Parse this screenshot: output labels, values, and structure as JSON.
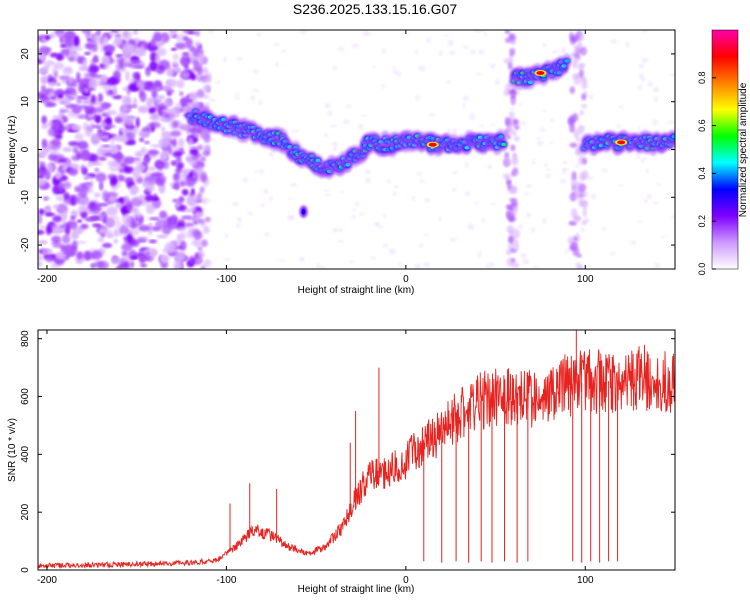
{
  "title": "S236.2025.133.15.16.G07",
  "chart_data": [
    {
      "type": "heatmap",
      "xlabel": "Height of straight line (km)",
      "ylabel": "Frequency (Hz)",
      "xlim": [
        -205,
        150
      ],
      "ylim": [
        -25,
        25
      ],
      "xticks": [
        -200,
        -100,
        0,
        100
      ],
      "yticks": [
        -20,
        -10,
        0,
        10,
        20
      ],
      "colorbar": {
        "label": "Normalized spectral amplitude",
        "range": [
          0,
          1
        ],
        "ticks": [
          0.0,
          0.2,
          0.4,
          0.6,
          0.8
        ],
        "colors": [
          "#ffffff",
          "#cc99ff",
          "#7f00ff",
          "#0000ff",
          "#00ffff",
          "#00ff00",
          "#ffff00",
          "#ff8000",
          "#ff0000",
          "#ff00aa"
        ]
      },
      "ridge": [
        {
          "x": -120,
          "y": 7
        },
        {
          "x": -110,
          "y": 6
        },
        {
          "x": -100,
          "y": 5
        },
        {
          "x": -90,
          "y": 4
        },
        {
          "x": -80,
          "y": 3
        },
        {
          "x": -70,
          "y": 2
        },
        {
          "x": -60,
          "y": -1
        },
        {
          "x": -50,
          "y": -3
        },
        {
          "x": -40,
          "y": -4
        },
        {
          "x": -30,
          "y": -2
        },
        {
          "x": -20,
          "y": 1.5
        },
        {
          "x": -10,
          "y": 1
        },
        {
          "x": 0,
          "y": 2
        },
        {
          "x": 10,
          "y": 1.5
        },
        {
          "x": 20,
          "y": 1
        },
        {
          "x": 30,
          "y": 1.2
        },
        {
          "x": 40,
          "y": 1.5
        },
        {
          "x": 55,
          "y": 1.5
        },
        {
          "x": 60,
          "y": 15
        },
        {
          "x": 70,
          "y": 15
        },
        {
          "x": 80,
          "y": 16
        },
        {
          "x": 90,
          "y": 18
        },
        {
          "x": 100,
          "y": 1.5
        },
        {
          "x": 120,
          "y": 1.5
        },
        {
          "x": 150,
          "y": 1.5
        }
      ],
      "peaks": [
        {
          "x": 15,
          "y": 1,
          "amplitude": 0.9
        },
        {
          "x": 75,
          "y": 16,
          "amplitude": 0.9
        },
        {
          "x": 120,
          "y": 1.5,
          "amplitude": 0.9
        }
      ]
    },
    {
      "type": "line",
      "xlabel": "Height of straight line (km)",
      "ylabel": "SNR (10 * v/v)",
      "xlim": [
        -205,
        150
      ],
      "ylim": [
        0,
        830
      ],
      "xticks": [
        -200,
        -100,
        0,
        100
      ],
      "yticks": [
        0,
        200,
        400,
        600,
        800
      ],
      "series": [
        {
          "color": "#e8231f",
          "envelope": [
            {
              "x": -205,
              "y": 15
            },
            {
              "x": -150,
              "y": 20
            },
            {
              "x": -120,
              "y": 25
            },
            {
              "x": -105,
              "y": 35
            },
            {
              "x": -95,
              "y": 80
            },
            {
              "x": -85,
              "y": 140
            },
            {
              "x": -75,
              "y": 120
            },
            {
              "x": -65,
              "y": 80
            },
            {
              "x": -55,
              "y": 55
            },
            {
              "x": -45,
              "y": 80
            },
            {
              "x": -35,
              "y": 150
            },
            {
              "x": -28,
              "y": 250
            },
            {
              "x": -20,
              "y": 330
            },
            {
              "x": -10,
              "y": 340
            },
            {
              "x": 0,
              "y": 380
            },
            {
              "x": 10,
              "y": 440
            },
            {
              "x": 20,
              "y": 480
            },
            {
              "x": 30,
              "y": 540
            },
            {
              "x": 40,
              "y": 580
            },
            {
              "x": 50,
              "y": 600
            },
            {
              "x": 60,
              "y": 600
            },
            {
              "x": 70,
              "y": 590
            },
            {
              "x": 80,
              "y": 610
            },
            {
              "x": 90,
              "y": 640
            },
            {
              "x": 100,
              "y": 650
            },
            {
              "x": 110,
              "y": 650
            },
            {
              "x": 120,
              "y": 660
            },
            {
              "x": 130,
              "y": 670
            },
            {
              "x": 140,
              "y": 660
            },
            {
              "x": 150,
              "y": 640
            }
          ],
          "spikes": [
            {
              "x": -98,
              "y": 230
            },
            {
              "x": -87,
              "y": 300
            },
            {
              "x": -72,
              "y": 280
            },
            {
              "x": -31,
              "y": 440
            },
            {
              "x": -28,
              "y": 550
            },
            {
              "x": -15,
              "y": 700
            },
            {
              "x": 95,
              "y": 840
            }
          ],
          "dropouts": [
            {
              "x": 10,
              "y": 30
            },
            {
              "x": 20,
              "y": 25
            },
            {
              "x": 28,
              "y": 30
            },
            {
              "x": 35,
              "y": 25
            },
            {
              "x": 42,
              "y": 30
            },
            {
              "x": 48,
              "y": 25
            },
            {
              "x": 55,
              "y": 30
            },
            {
              "x": 62,
              "y": 25
            },
            {
              "x": 68,
              "y": 30
            },
            {
              "x": 93,
              "y": 30
            },
            {
              "x": 98,
              "y": 25
            },
            {
              "x": 103,
              "y": 30
            },
            {
              "x": 108,
              "y": 25
            },
            {
              "x": 113,
              "y": 30
            },
            {
              "x": 118,
              "y": 30
            }
          ]
        }
      ]
    }
  ]
}
